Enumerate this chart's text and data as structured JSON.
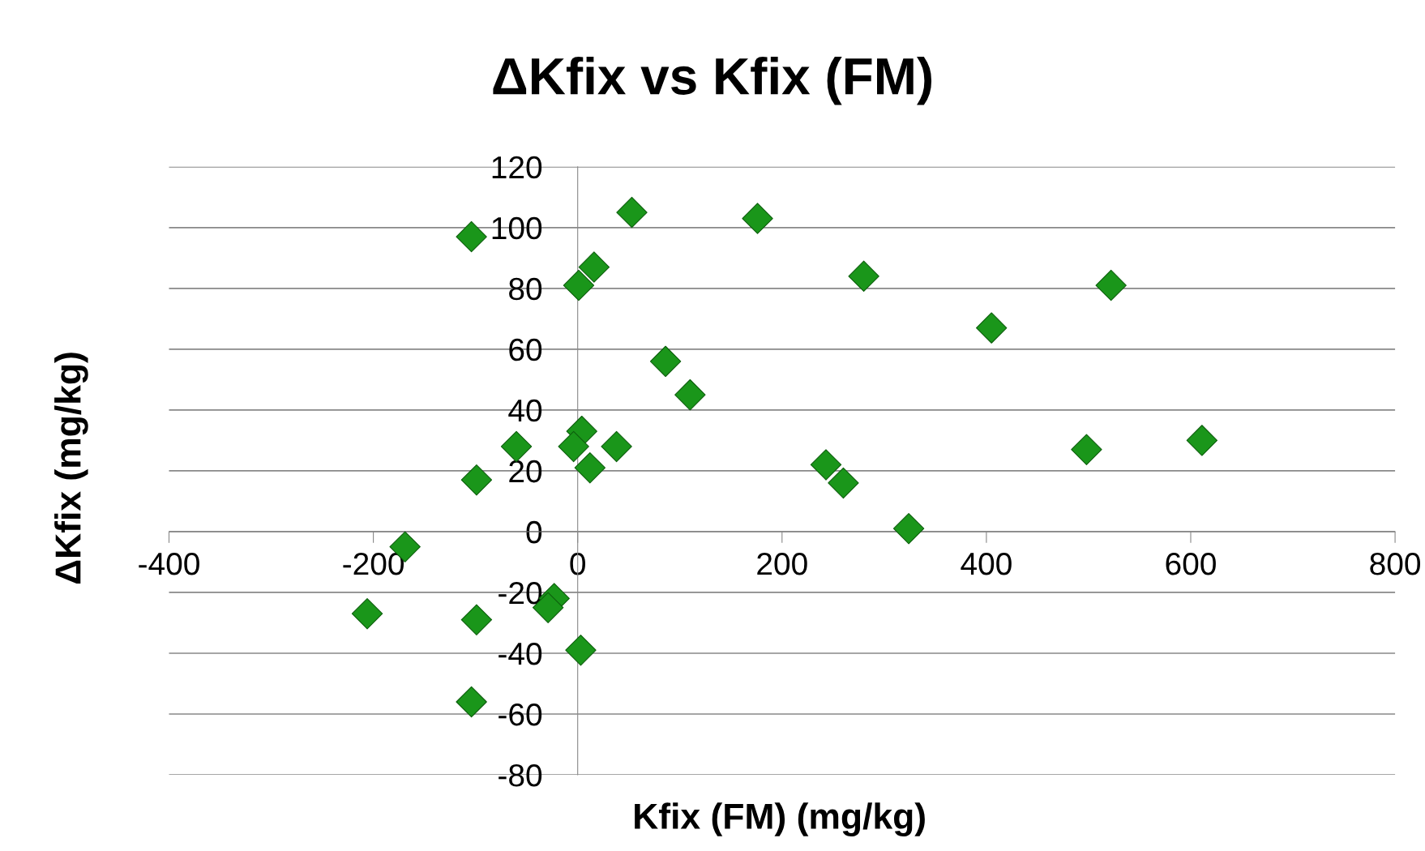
{
  "chart_data": {
    "type": "scatter",
    "title": "ΔKfix vs Kfix (FM)",
    "xlabel": "Kfix (FM) (mg/kg)",
    "ylabel": "ΔKfix (mg/kg)",
    "x": [
      -104,
      53,
      176,
      16,
      1,
      280,
      522,
      405,
      86,
      110,
      4,
      -4,
      -60,
      38,
      12,
      -99,
      243,
      260,
      324,
      498,
      611,
      -169,
      -206,
      -99,
      -23,
      -29,
      3,
      -104
    ],
    "values": [
      97,
      105,
      103,
      87,
      81,
      84,
      81,
      67,
      56,
      45,
      33,
      28,
      28,
      28,
      21,
      17,
      22,
      16,
      1,
      27,
      30,
      -5,
      -27,
      -29,
      -22,
      -25,
      -39,
      -56
    ],
    "color": "#1a961a",
    "marker": "diamond",
    "grid": "y",
    "xlim": [
      -400,
      800
    ],
    "xticks": [
      -400,
      -200,
      0,
      200,
      400,
      600,
      800
    ],
    "ylim": [
      -80,
      120
    ],
    "yticks": [
      -80,
      -60,
      -40,
      -20,
      0,
      20,
      40,
      60,
      80,
      100,
      120
    ]
  }
}
